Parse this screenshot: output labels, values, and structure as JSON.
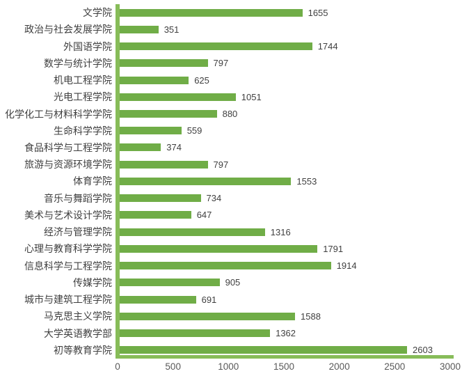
{
  "chart_data": {
    "type": "bar",
    "orientation": "horizontal",
    "title": "",
    "xlabel": "",
    "ylabel": "",
    "categories": [
      "文学院",
      "政治与社会发展学院",
      "外国语学院",
      "数学与统计学院",
      "机电工程学院",
      "光电工程学院",
      "化学化工与材料科学学院",
      "生命科学学院",
      "食品科学与工程学院",
      "旅游与资源环境学院",
      "体育学院",
      "音乐与舞蹈学院",
      "美术与艺术设计学院",
      "经济与管理学院",
      "心理与教育科学学院",
      "信息科学与工程学院",
      "传媒学院",
      "城市与建筑工程学院",
      "马克思主义学院",
      "大学英语教学部",
      "初等教育学院"
    ],
    "values": [
      1655,
      351,
      1744,
      797,
      625,
      1051,
      880,
      559,
      374,
      797,
      1553,
      734,
      647,
      1316,
      1791,
      1914,
      905,
      691,
      1588,
      1362,
      2603
    ],
    "data_labels_visible": true,
    "x_ticks": [
      0,
      500,
      1000,
      1500,
      2000,
      2500,
      3000
    ],
    "xlim": [
      0,
      3000
    ],
    "grid": false,
    "legend": "none",
    "bar_color": "#70AD47",
    "axis_line_color": "#87BC59",
    "label_color": "#3F3F3F",
    "tick_color": "#595959"
  }
}
